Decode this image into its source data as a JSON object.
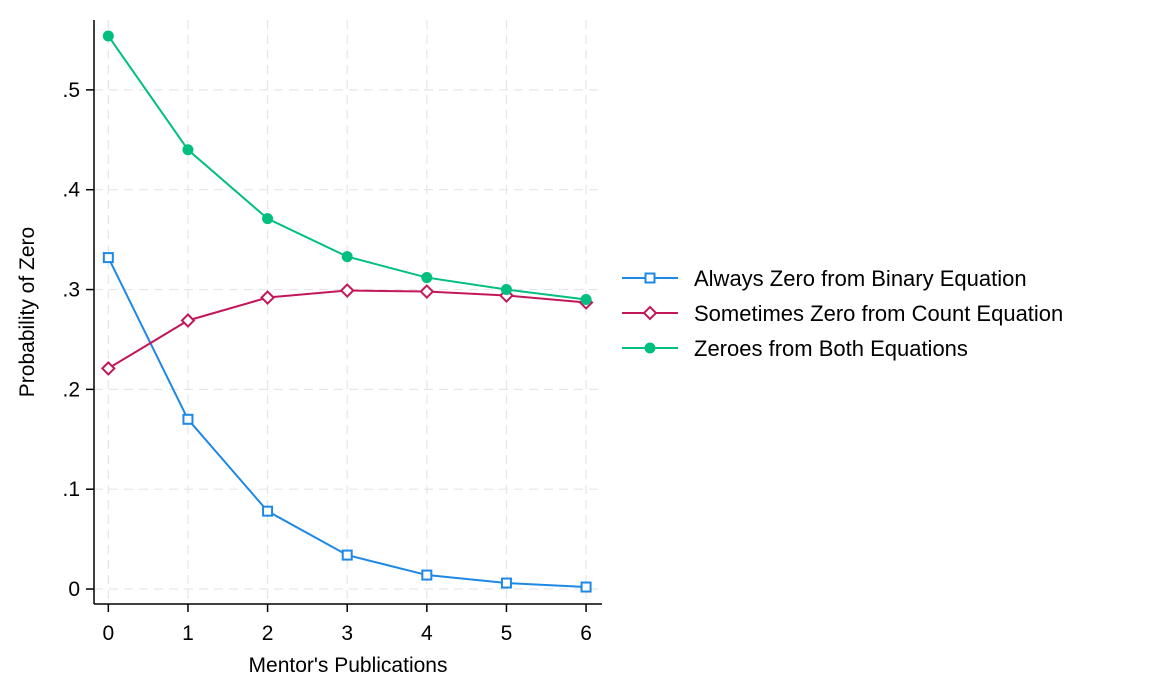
{
  "chart_data": {
    "type": "line",
    "title": "",
    "xlabel": "Mentor's Publications",
    "ylabel": "Probability of Zero",
    "x": [
      0,
      1,
      2,
      3,
      4,
      5,
      6
    ],
    "xticks": [
      0,
      1,
      2,
      3,
      4,
      5,
      6
    ],
    "xtick_labels": [
      "0",
      "1",
      "2",
      "3",
      "4",
      "5",
      "6"
    ],
    "yticks": [
      0,
      0.1,
      0.2,
      0.3,
      0.4,
      0.5
    ],
    "ytick_labels": [
      "0",
      ".1",
      ".2",
      ".3",
      ".4",
      ".5"
    ],
    "xlim": [
      -0.18,
      6.2
    ],
    "ylim": [
      -0.015,
      0.57
    ],
    "grid": true,
    "legend_position": "right",
    "series": [
      {
        "name": "Always Zero from Binary Equation",
        "color": "#1e88e5",
        "marker": "square-open",
        "values": [
          0.332,
          0.17,
          0.078,
          0.034,
          0.014,
          0.006,
          0.002
        ]
      },
      {
        "name": "Sometimes Zero from Count Equation",
        "color": "#c2185b",
        "marker": "diamond-open",
        "values": [
          0.221,
          0.269,
          0.292,
          0.299,
          0.298,
          0.294,
          0.287
        ]
      },
      {
        "name": "Zeroes from Both Equations",
        "color": "#00bf7f",
        "marker": "circle-filled",
        "values": [
          0.554,
          0.44,
          0.371,
          0.333,
          0.312,
          0.3,
          0.29
        ]
      }
    ]
  }
}
